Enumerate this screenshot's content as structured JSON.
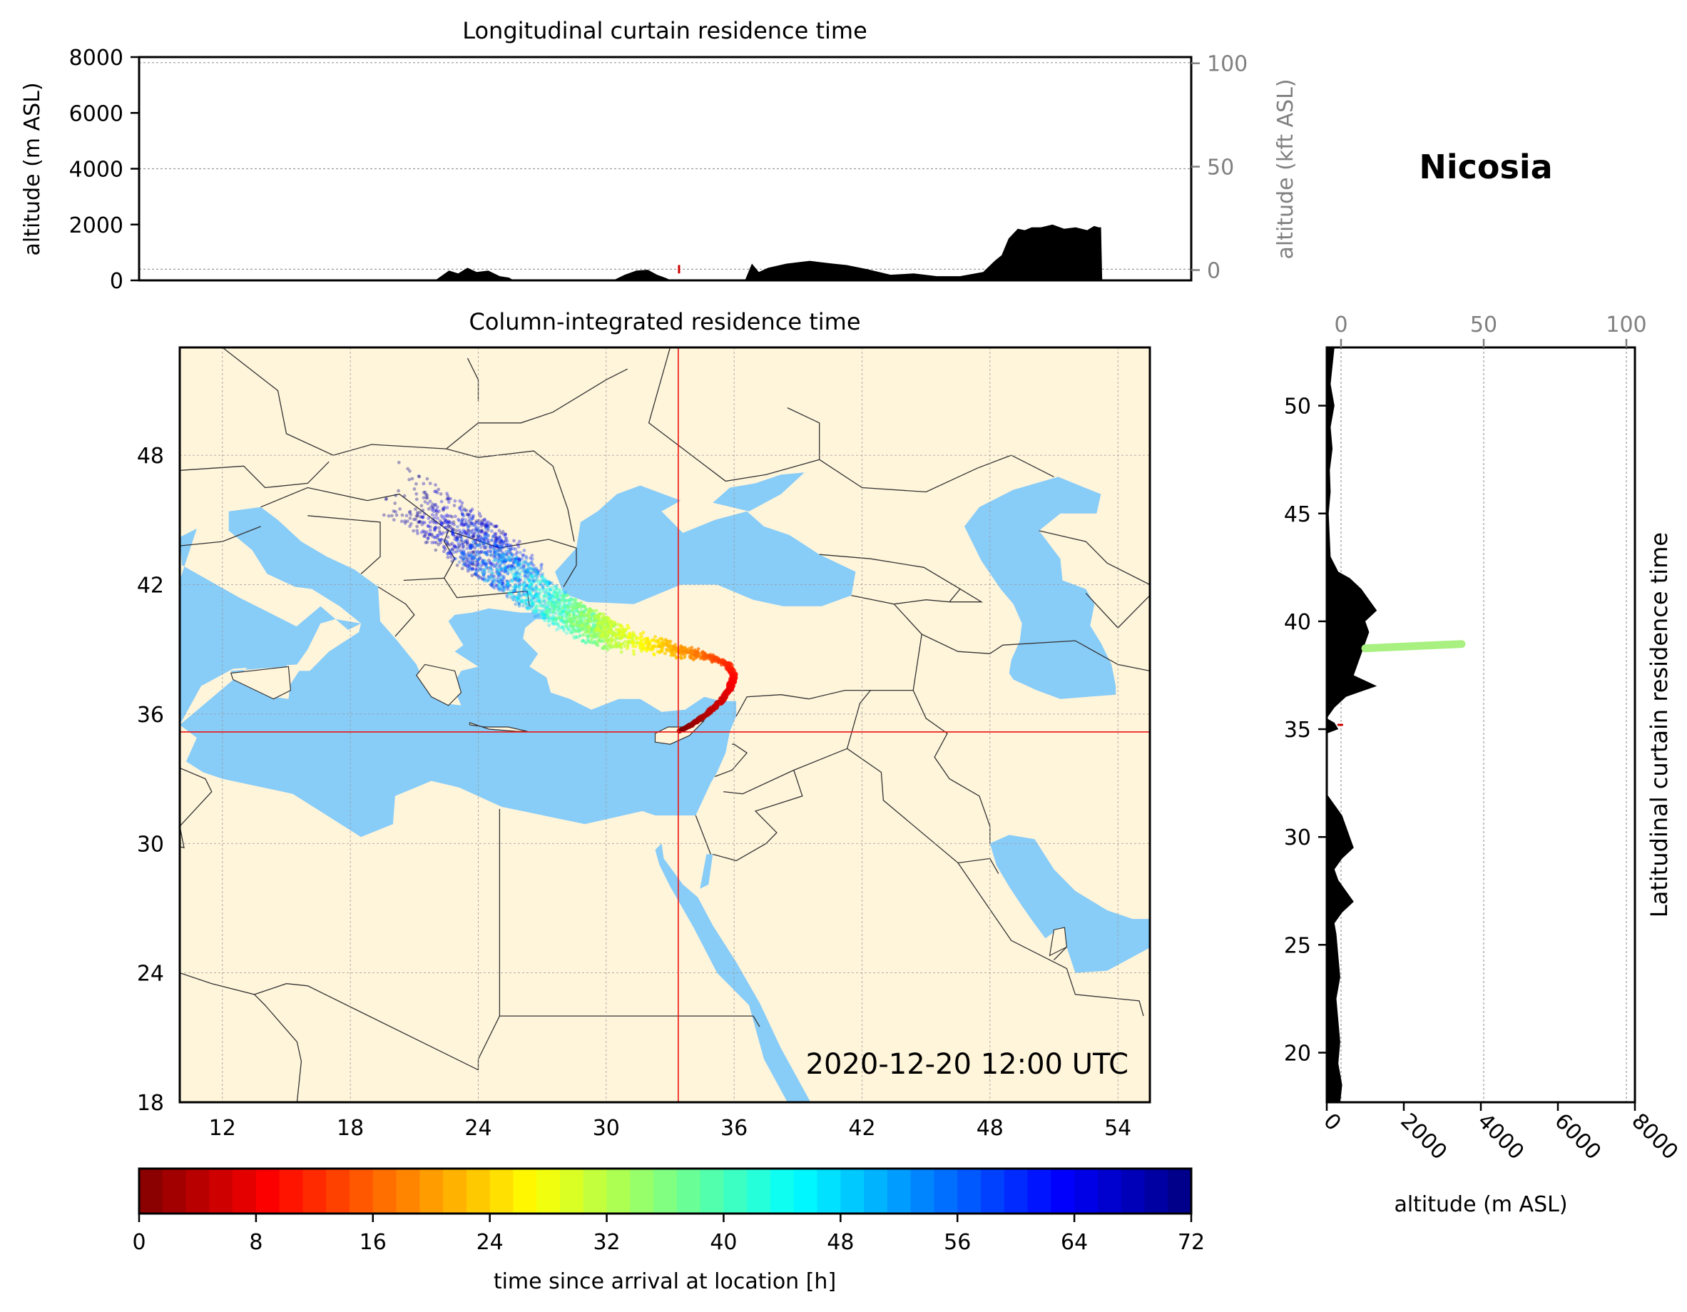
{
  "figure": {
    "location_title": "Nicosia",
    "timestamp": "2020-12-20 12:00 UTC",
    "colors": {
      "land": "#fff5db",
      "sea": "#88ccf8",
      "border": "#333333",
      "crosshair": "#ee1111",
      "terrain": "#000000",
      "grid": "#999999"
    },
    "colormap": "jet_r"
  },
  "chart_data": [
    {
      "type": "area",
      "title": "Longitudinal curtain residence time",
      "ylabel": "altitude (m ASL)",
      "ylabel_right": "altitude (kft ASL)",
      "ylim": [
        0,
        8000
      ],
      "yticks": [
        "0",
        "2000",
        "4000",
        "6000",
        "8000"
      ],
      "right_ylim_kft": [
        -5,
        103
      ],
      "right_yticks": [
        "0",
        "50",
        "100"
      ],
      "xlim": [
        10,
        55.5
      ],
      "terrain_profile": {
        "lon": [
          10,
          22.8,
          23.4,
          23.8,
          24.2,
          24.6,
          25.1,
          25.6,
          26.0,
          26.2,
          30.5,
          31.0,
          31.5,
          32.0,
          32.4,
          32.8,
          33.0,
          36.2,
          36.5,
          36.8,
          37.2,
          38.0,
          39.0,
          40.0,
          40.6,
          41.5,
          42.5,
          43.5,
          44.5,
          45.5,
          46.5,
          47.0,
          47.3,
          47.6,
          48.0,
          48.3,
          48.6,
          49.0,
          49.5,
          50.0,
          50.5,
          51.0,
          51.3,
          51.5,
          51.6,
          51.65,
          55.5
        ],
        "alt_m": [
          0,
          0,
          350,
          250,
          450,
          300,
          350,
          150,
          100,
          0,
          0,
          200,
          350,
          380,
          200,
          80,
          0,
          0,
          600,
          300,
          450,
          600,
          700,
          600,
          550,
          400,
          200,
          250,
          150,
          150,
          300,
          700,
          900,
          1500,
          1850,
          1800,
          1900,
          1900,
          2000,
          1850,
          1900,
          1800,
          1950,
          1900,
          1900,
          0,
          0
        ]
      },
      "guide_lines_m": [
        7800,
        4000,
        400
      ],
      "trajectory_marks": [
        {
          "lon": 33.35,
          "alt_m": 250,
          "color": "#cc0000"
        }
      ]
    },
    {
      "type": "scatter",
      "title": "Column-integrated residence time",
      "xlim": [
        10,
        55.5
      ],
      "ylim": [
        18,
        53
      ],
      "xticks": [
        "12",
        "18",
        "24",
        "30",
        "36",
        "42",
        "48",
        "54"
      ],
      "yticks": [
        "18",
        "24",
        "30",
        "36",
        "42",
        "48"
      ],
      "grid": true,
      "release_point": {
        "lon": 33.38,
        "lat": 35.17
      },
      "plume_centerline": {
        "hours": [
          0,
          2,
          4,
          6,
          8,
          10,
          12,
          15,
          18,
          21,
          24,
          27,
          30,
          34,
          38,
          42,
          46,
          50,
          54,
          58,
          62,
          66,
          70,
          72
        ],
        "lon": [
          33.4,
          34.0,
          34.7,
          35.4,
          35.8,
          36.0,
          35.7,
          35.0,
          34.2,
          33.4,
          32.7,
          31.7,
          30.7,
          29.6,
          28.7,
          27.9,
          27.0,
          26.1,
          25.3,
          24.7,
          24.1,
          23.4,
          22.5,
          21.8
        ],
        "lat": [
          35.2,
          35.5,
          36.0,
          36.6,
          37.2,
          37.8,
          38.3,
          38.6,
          38.8,
          38.95,
          39.1,
          39.3,
          39.6,
          40.0,
          40.4,
          40.8,
          41.4,
          42.0,
          42.6,
          43.2,
          43.8,
          44.3,
          44.8,
          45.2
        ]
      },
      "plume_spread_deg": [
        0.0,
        0.05,
        0.08,
        0.1,
        0.12,
        0.15,
        0.2,
        0.3,
        0.4,
        0.5,
        0.6,
        0.8,
        1.0,
        1.3,
        1.5,
        1.7,
        1.9,
        2.1,
        2.3,
        2.5,
        2.7,
        2.9,
        3.0,
        3.1
      ],
      "crosshair": {
        "lon": 33.38,
        "lat": 35.17
      }
    },
    {
      "type": "area",
      "title": "Latitudinal curtain residence time",
      "xlabel": "altitude (m ASL)",
      "xlim": [
        0,
        8000
      ],
      "xticks": [
        "0",
        "2000",
        "4000",
        "6000",
        "8000"
      ],
      "top_xlim_kft": [
        -5,
        103
      ],
      "top_xticks": [
        "0",
        "50",
        "100"
      ],
      "ylim": [
        17.7,
        52.7
      ],
      "yticks": [
        "20",
        "25",
        "30",
        "35",
        "40",
        "45",
        "50"
      ],
      "terrain_profile": {
        "lat": [
          17.7,
          18.5,
          19.5,
          20.5,
          21.5,
          22.5,
          23.5,
          24.5,
          25.5,
          26.0,
          26.5,
          27.0,
          27.5,
          28.0,
          28.5,
          29.0,
          29.5,
          30.0,
          30.5,
          31.0,
          32.0,
          34.8,
          35.0,
          35.3,
          35.5,
          36.0,
          36.5,
          37.0,
          37.5,
          38.0,
          38.5,
          39.0,
          39.5,
          40.0,
          40.5,
          41.0,
          41.5,
          42.0,
          42.3,
          43.0,
          45.0,
          46.0,
          47.0,
          48.0,
          49.0,
          50.0,
          51.0,
          52.7
        ],
        "alt_m": [
          350,
          400,
          300,
          350,
          300,
          250,
          350,
          300,
          250,
          200,
          400,
          700,
          500,
          300,
          200,
          400,
          700,
          600,
          500,
          400,
          0,
          0,
          300,
          200,
          0,
          200,
          500,
          1300,
          700,
          800,
          900,
          1000,
          1100,
          1000,
          1300,
          1100,
          900,
          600,
          300,
          100,
          50,
          100,
          80,
          150,
          100,
          200,
          100,
          200
        ]
      },
      "guide_lines_kft": [
        0,
        50,
        100
      ],
      "trajectory_marks": [
        {
          "lat": 38.75,
          "alt_from": 1000,
          "alt_to": 3500,
          "color": "#a8f080"
        },
        {
          "lat": 35.2,
          "alt_from": 300,
          "alt_to": 400,
          "color": "#cc0000"
        }
      ]
    }
  ],
  "colorbar": {
    "label": "time since arrival at location [h]",
    "range": [
      0,
      72
    ],
    "ticks": [
      "0",
      "8",
      "16",
      "24",
      "32",
      "40",
      "48",
      "56",
      "64",
      "72"
    ],
    "segments": 45
  }
}
